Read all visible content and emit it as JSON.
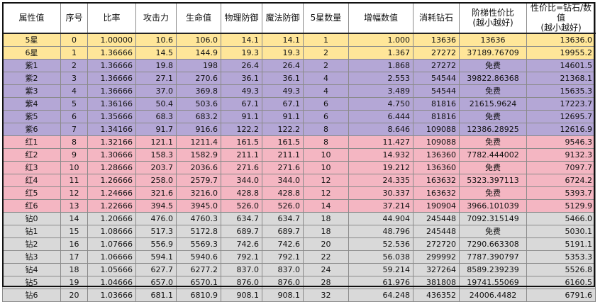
{
  "headers": [
    "属性值",
    "序号",
    "比率",
    "攻击力",
    "生命值",
    "物理防御",
    "魔法防御",
    "5星数量",
    "增幅数值",
    "消耗钻石",
    "阶梯性价比\n(越小越好)",
    "性价比=钻石/数值\n(越小越好)"
  ],
  "rows": [
    {
      "group": "gold",
      "c": [
        "5星",
        "0",
        "1.00000",
        "10.6",
        "106.0",
        "14.1",
        "14.1",
        "1",
        "1.000",
        "13636",
        "13636",
        "13636.0"
      ]
    },
    {
      "group": "gold",
      "c": [
        "6星",
        "1",
        "1.36666",
        "14.5",
        "144.9",
        "19.3",
        "19.3",
        "2",
        "1.367",
        "27272",
        "37189.76709",
        "19955.2"
      ]
    },
    {
      "group": "purple",
      "c": [
        "紫1",
        "2",
        "1.36666",
        "19.8",
        "198",
        "26.4",
        "26.4",
        "2",
        "1.868",
        "27272",
        "免费",
        "14601.5"
      ]
    },
    {
      "group": "purple",
      "c": [
        "紫2",
        "3",
        "1.36666",
        "27.1",
        "270.6",
        "36.1",
        "36.1",
        "4",
        "2.553",
        "54544",
        "39822.86368",
        "21368.1"
      ]
    },
    {
      "group": "purple",
      "c": [
        "紫3",
        "4",
        "1.36666",
        "37.0",
        "369.8",
        "49.3",
        "49.3",
        "4",
        "3.489",
        "54544",
        "免费",
        "15635.3"
      ]
    },
    {
      "group": "purple",
      "c": [
        "紫4",
        "5",
        "1.36166",
        "50.4",
        "503.6",
        "67.1",
        "67.1",
        "6",
        "4.750",
        "81816",
        "21615.9624",
        "17223.7"
      ]
    },
    {
      "group": "purple",
      "c": [
        "紫5",
        "6",
        "1.35666",
        "68.3",
        "683.2",
        "91.1",
        "91.1",
        "6",
        "6.444",
        "81816",
        "免费",
        "12695.7"
      ]
    },
    {
      "group": "purple",
      "c": [
        "紫6",
        "7",
        "1.34166",
        "91.7",
        "916.6",
        "122.2",
        "122.2",
        "8",
        "8.646",
        "109088",
        "12386.28925",
        "12616.9"
      ]
    },
    {
      "group": "red",
      "c": [
        "红1",
        "8",
        "1.32166",
        "121.1",
        "1211.4",
        "161.5",
        "161.5",
        "8",
        "11.427",
        "109088",
        "免费",
        "9546.3"
      ]
    },
    {
      "group": "red",
      "c": [
        "红2",
        "9",
        "1.30666",
        "158.3",
        "1582.9",
        "211.1",
        "211.1",
        "10",
        "14.932",
        "136360",
        "7782.444002",
        "9132.3"
      ]
    },
    {
      "group": "red",
      "c": [
        "红3",
        "10",
        "1.28666",
        "203.7",
        "2036.6",
        "271.6",
        "271.6",
        "10",
        "19.212",
        "136360",
        "免费",
        "7097.7"
      ]
    },
    {
      "group": "red",
      "c": [
        "红4",
        "11",
        "1.26666",
        "258.0",
        "2579.7",
        "344.0",
        "344.0",
        "12",
        "24.335",
        "163632",
        "5323.397113",
        "6724.2"
      ]
    },
    {
      "group": "red",
      "c": [
        "红5",
        "12",
        "1.24666",
        "321.6",
        "3216.0",
        "428.8",
        "428.8",
        "12",
        "30.337",
        "163632",
        "免费",
        "5393.7"
      ]
    },
    {
      "group": "red",
      "c": [
        "红6",
        "13",
        "1.22666",
        "394.5",
        "3945.0",
        "526.0",
        "526.0",
        "14",
        "37.214",
        "190904",
        "3966.101039",
        "5129.9"
      ]
    },
    {
      "group": "gray",
      "c": [
        "钻0",
        "14",
        "1.20666",
        "476.0",
        "4760.3",
        "634.7",
        "634.7",
        "18",
        "44.904",
        "245448",
        "7092.315149",
        "5466.0"
      ]
    },
    {
      "group": "gray",
      "c": [
        "钻1",
        "15",
        "1.08666",
        "517.3",
        "5172.8",
        "689.7",
        "689.7",
        "18",
        "48.796",
        "245448",
        "免费",
        "5030.1"
      ]
    },
    {
      "group": "gray",
      "c": [
        "钻2",
        "16",
        "1.07666",
        "556.9",
        "5569.3",
        "742.6",
        "742.6",
        "20",
        "52.536",
        "272720",
        "7290.663308",
        "5191.1"
      ]
    },
    {
      "group": "gray",
      "c": [
        "钻3",
        "17",
        "1.06666",
        "594.1",
        "5940.6",
        "792.1",
        "792.1",
        "22",
        "56.038",
        "299992",
        "7787.390797",
        "5353.3"
      ]
    },
    {
      "group": "gray",
      "c": [
        "钻4",
        "18",
        "1.05666",
        "627.7",
        "6277.2",
        "837.0",
        "837.0",
        "24",
        "59.214",
        "327264",
        "8589.239239",
        "5526.8"
      ]
    },
    {
      "group": "gray",
      "c": [
        "钻5",
        "19",
        "1.04666",
        "657.0",
        "6570.1",
        "876.0",
        "876.0",
        "28",
        "61.976",
        "381808",
        "19741.55069",
        "6160.5"
      ]
    },
    {
      "group": "gray",
      "c": [
        "钻6",
        "20",
        "1.03666",
        "681.1",
        "6810.9",
        "908.1",
        "908.1",
        "32",
        "64.248",
        "436352",
        "24006.4482",
        "6791.6"
      ]
    }
  ],
  "group_colors": {
    "gold": "#ffe699",
    "purple": "#b4a7d6",
    "red": "#f4b6c2",
    "gray": "#d9d9d9"
  }
}
